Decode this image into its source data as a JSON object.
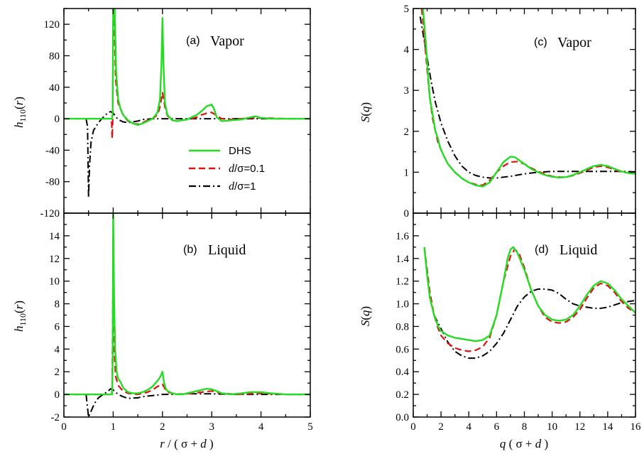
{
  "colors": {
    "DHS": "#22dd22",
    "d01": "#dd1111",
    "d1": "#000000",
    "frame": "#000000"
  },
  "legend": {
    "entries": [
      {
        "key": "DHS",
        "text": "DHS"
      },
      {
        "key": "d01",
        "text": "d/σ=0.1"
      },
      {
        "key": "d1",
        "text": "d/σ=1"
      }
    ]
  },
  "chart_data": [
    {
      "panel": "a",
      "type": "line",
      "label": "(a)",
      "title": "Vapor",
      "ylabel": "h110(r)",
      "xlabel": "",
      "xlim": [
        0,
        5
      ],
      "ylim": [
        -120,
        140
      ],
      "xticks": [
        0,
        1,
        2,
        3,
        4,
        5
      ],
      "yticks": [
        -120,
        -80,
        -40,
        0,
        40,
        80,
        120
      ],
      "show_xticklabels": false,
      "show_legend": true,
      "series": [
        {
          "key": "DHS",
          "name": "DHS",
          "x": [
            0,
            0.95,
            0.98,
            0.99,
            1.0,
            1.005,
            1.01,
            1.03,
            1.06,
            1.1,
            1.15,
            1.2,
            1.3,
            1.4,
            1.5,
            1.6,
            1.7,
            1.8,
            1.9,
            1.95,
            1.98,
            2.0,
            2.02,
            2.05,
            2.1,
            2.2,
            2.3,
            2.4,
            2.5,
            2.6,
            2.7,
            2.8,
            2.9,
            3.0,
            3.05,
            3.1,
            3.2,
            3.4,
            3.6,
            3.8,
            3.9,
            4.0,
            4.2,
            4.5,
            5.0
          ],
          "y": [
            0,
            0,
            0,
            10,
            140,
            140,
            140,
            140,
            60,
            25,
            12,
            5,
            -2,
            -6,
            -8,
            -6,
            -3,
            0,
            8,
            25,
            70,
            128,
            70,
            20,
            5,
            -2,
            -3,
            -2,
            -1,
            2,
            5,
            10,
            16,
            18,
            12,
            2,
            -3,
            -2,
            -1,
            2,
            3,
            1,
            0,
            0,
            0
          ]
        },
        {
          "key": "d01",
          "name": "d/σ=0.1",
          "x": [
            0,
            0.8,
            0.9,
            0.95,
            0.97,
            0.98,
            0.99,
            0.995,
            1.0,
            1.02,
            1.05,
            1.1,
            1.2,
            1.3,
            1.4,
            1.5,
            1.6,
            1.7,
            1.8,
            1.9,
            1.95,
            2.0,
            2.05,
            2.1,
            2.2,
            2.3,
            2.4,
            2.5,
            2.6,
            2.7,
            2.8,
            2.9,
            3.0,
            3.1,
            3.2,
            3.4,
            3.6,
            3.8,
            4.0,
            4.5,
            5.0
          ],
          "y": [
            0,
            0,
            0,
            0,
            -5,
            -25,
            -5,
            60,
            140,
            140,
            50,
            20,
            5,
            -3,
            -6,
            -7,
            -5,
            -2,
            0,
            5,
            15,
            33,
            15,
            4,
            -2,
            -3,
            -2,
            -1,
            0,
            2,
            5,
            7,
            8,
            4,
            0,
            -1,
            0,
            1,
            1,
            0,
            0
          ]
        },
        {
          "key": "d1",
          "name": "d/σ=1",
          "x": [
            0.45,
            0.48,
            0.5,
            0.52,
            0.55,
            0.6,
            0.7,
            0.8,
            0.9,
            0.95,
            1.0,
            1.05,
            1.1,
            1.2,
            1.3,
            1.4,
            1.5,
            1.6,
            1.8,
            2.0,
            2.5,
            3.0,
            3.5,
            4.0,
            4.5,
            5.0
          ],
          "y": [
            0,
            -10,
            -100,
            -60,
            -30,
            -15,
            -5,
            2,
            8,
            9,
            7,
            3,
            -1,
            -4,
            -5,
            -4,
            -3,
            -1,
            0,
            0,
            0,
            0,
            0,
            0,
            0,
            0
          ]
        }
      ]
    },
    {
      "panel": "b",
      "type": "line",
      "label": "(b)",
      "title": "Liquid",
      "ylabel": "h110(r)",
      "xlabel": "r / ( σ + d )",
      "xlim": [
        0,
        5
      ],
      "ylim": [
        -2,
        16
      ],
      "xticks": [
        0,
        1,
        2,
        3,
        4,
        5
      ],
      "yticks": [
        -2,
        0,
        2,
        4,
        6,
        8,
        10,
        12,
        14
      ],
      "show_xticklabels": true,
      "show_legend": false,
      "series": [
        {
          "key": "DHS",
          "name": "DHS",
          "x": [
            0,
            0.95,
            0.98,
            0.99,
            1.0,
            1.01,
            1.02,
            1.04,
            1.07,
            1.1,
            1.15,
            1.2,
            1.3,
            1.4,
            1.5,
            1.6,
            1.7,
            1.8,
            1.9,
            1.95,
            2.0,
            2.03,
            2.06,
            2.1,
            2.2,
            2.3,
            2.4,
            2.5,
            2.6,
            2.7,
            2.8,
            2.9,
            3.0,
            3.1,
            3.2,
            3.4,
            3.6,
            3.8,
            4.0,
            4.2,
            4.5,
            5.0
          ],
          "y": [
            0,
            0,
            0,
            3,
            16,
            12,
            8,
            4,
            2,
            1.4,
            1.1,
            0.6,
            0.2,
            0.1,
            0.1,
            0.2,
            0.4,
            0.7,
            1.2,
            1.5,
            2.0,
            1.1,
            0.6,
            0.3,
            0.1,
            0,
            0,
            0.1,
            0.2,
            0.3,
            0.4,
            0.5,
            0.45,
            0.3,
            0.1,
            0,
            0.1,
            0.2,
            0.2,
            0.1,
            0,
            0
          ]
        },
        {
          "key": "d01",
          "name": "d/σ=0.1",
          "x": [
            0,
            0.9,
            0.95,
            0.97,
            0.98,
            0.99,
            1.0,
            1.01,
            1.02,
            1.05,
            1.1,
            1.2,
            1.3,
            1.5,
            1.7,
            1.8,
            1.9,
            2.0,
            2.05,
            2.1,
            2.3,
            2.5,
            2.8,
            3.0,
            3.2,
            3.5,
            4.0,
            4.5,
            5.0
          ],
          "y": [
            0,
            0,
            0,
            -0.1,
            0.5,
            6,
            14,
            9,
            4,
            1.6,
            0.8,
            0.3,
            0.1,
            0,
            0.2,
            0.4,
            0.7,
            0.9,
            0.5,
            0.2,
            0,
            0.05,
            0.2,
            0.3,
            0.1,
            0,
            0.1,
            0,
            0
          ]
        },
        {
          "key": "d1",
          "name": "d/σ=1",
          "x": [
            0.45,
            0.5,
            0.52,
            0.55,
            0.6,
            0.65,
            0.7,
            0.8,
            0.9,
            0.95,
            1.0,
            1.1,
            1.2,
            1.3,
            1.5,
            1.6,
            1.8,
            2.0,
            2.2,
            2.5,
            3.0,
            3.5,
            4.0,
            4.5,
            5.0
          ],
          "y": [
            0,
            -2,
            -1.8,
            -1.5,
            -1,
            -0.6,
            -0.3,
            0,
            0.3,
            0.5,
            0.4,
            0,
            -0.2,
            -0.35,
            -0.3,
            -0.2,
            -0.1,
            0,
            0,
            0.05,
            0.05,
            0,
            0,
            0,
            0
          ]
        }
      ]
    },
    {
      "panel": "c",
      "type": "line",
      "label": "(c)",
      "title": "Vapor",
      "ylabel": "S(q)",
      "xlabel": "",
      "xlim": [
        0,
        16
      ],
      "ylim": [
        0,
        5
      ],
      "xticks": [
        0,
        2,
        4,
        6,
        8,
        10,
        12,
        14,
        16
      ],
      "yticks": [
        0,
        1,
        2,
        3,
        4,
        5
      ],
      "show_xticklabels": false,
      "show_legend": false,
      "series": [
        {
          "key": "DHS",
          "name": "DHS",
          "x": [
            0.7,
            0.8,
            0.9,
            1.0,
            1.1,
            1.2,
            1.3,
            1.4,
            1.5,
            1.6,
            1.7,
            1.8,
            1.9,
            2.0,
            2.2,
            2.5,
            3.0,
            3.5,
            4.0,
            4.5,
            5.0,
            5.5,
            6.0,
            6.5,
            7.0,
            7.3,
            7.6,
            8.0,
            8.5,
            9.0,
            9.5,
            10,
            10.5,
            11,
            11.5,
            12,
            12.5,
            13,
            13.5,
            14,
            14.5,
            15,
            15.5,
            16
          ],
          "y": [
            5,
            4.6,
            4.2,
            3.7,
            3.2,
            2.8,
            2.6,
            2.4,
            2.2,
            2.0,
            1.9,
            1.8,
            1.65,
            1.55,
            1.4,
            1.2,
            1.0,
            0.85,
            0.75,
            0.68,
            0.65,
            0.75,
            1.0,
            1.25,
            1.38,
            1.37,
            1.3,
            1.2,
            1.08,
            1.0,
            0.93,
            0.89,
            0.87,
            0.88,
            0.93,
            1.0,
            1.08,
            1.15,
            1.18,
            1.15,
            1.08,
            1.02,
            0.98,
            0.96
          ]
        },
        {
          "key": "d01",
          "name": "d/σ=0.1",
          "x": [
            0.6,
            0.7,
            0.8,
            0.9,
            1.0,
            1.2,
            1.4,
            1.6,
            1.8,
            2.0,
            2.2,
            2.5,
            3.0,
            3.5,
            4.0,
            4.5,
            5.0,
            5.5,
            6.0,
            6.5,
            7.0,
            7.5,
            8.0,
            8.5,
            9.0,
            9.5,
            10,
            10.5,
            11,
            11.5,
            12,
            12.5,
            13,
            13.5,
            14,
            14.5,
            15,
            15.5,
            16
          ],
          "y": [
            5,
            4.7,
            4.3,
            3.9,
            3.5,
            2.8,
            2.3,
            2.0,
            1.7,
            1.55,
            1.4,
            1.2,
            1.0,
            0.85,
            0.75,
            0.7,
            0.68,
            0.8,
            1.0,
            1.15,
            1.25,
            1.26,
            1.2,
            1.1,
            1.02,
            0.95,
            0.9,
            0.88,
            0.88,
            0.92,
            0.98,
            1.05,
            1.12,
            1.15,
            1.12,
            1.06,
            1.01,
            0.98,
            0.96
          ]
        },
        {
          "key": "d1",
          "name": "d/σ=1",
          "x": [
            0.5,
            0.7,
            1.0,
            1.3,
            1.6,
            2.0,
            2.5,
            3.0,
            3.5,
            4.0,
            4.5,
            5.0,
            5.5,
            6.0,
            7.0,
            8.0,
            9.0,
            10,
            11,
            12,
            13,
            14,
            15,
            16
          ],
          "y": [
            4.8,
            4.4,
            3.8,
            3.2,
            2.7,
            2.2,
            1.75,
            1.4,
            1.15,
            1.0,
            0.92,
            0.88,
            0.86,
            0.86,
            0.9,
            0.96,
            1.0,
            1.02,
            1.02,
            1.02,
            1.02,
            1.02,
            1.02,
            1.01
          ]
        }
      ]
    },
    {
      "panel": "d",
      "type": "line",
      "label": "(d)",
      "title": "Liquid",
      "ylabel": "S(q)",
      "xlabel": "q ( σ + d )",
      "xlim": [
        0,
        16
      ],
      "ylim": [
        0.0,
        1.8
      ],
      "xticks": [
        0,
        2,
        4,
        6,
        8,
        10,
        12,
        14,
        16
      ],
      "yticks": [
        0.0,
        0.2,
        0.4,
        0.6,
        0.8,
        1.0,
        1.2,
        1.4,
        1.6
      ],
      "show_xticklabels": true,
      "show_legend": false,
      "series": [
        {
          "key": "DHS",
          "name": "DHS",
          "x": [
            0.8,
            1.0,
            1.2,
            1.5,
            1.8,
            2.0,
            2.5,
            3.0,
            3.5,
            4.0,
            4.5,
            5.0,
            5.5,
            6.0,
            6.5,
            6.8,
            7.0,
            7.2,
            7.5,
            8.0,
            8.5,
            9.0,
            9.5,
            10,
            10.5,
            11,
            11.5,
            12,
            12.5,
            13,
            13.5,
            14,
            14.5,
            15,
            15.5,
            16
          ],
          "y": [
            1.5,
            1.25,
            1.05,
            0.9,
            0.8,
            0.76,
            0.72,
            0.7,
            0.69,
            0.68,
            0.67,
            0.68,
            0.72,
            0.9,
            1.2,
            1.4,
            1.48,
            1.5,
            1.45,
            1.3,
            1.12,
            0.98,
            0.9,
            0.86,
            0.85,
            0.86,
            0.9,
            0.98,
            1.08,
            1.16,
            1.2,
            1.18,
            1.12,
            1.04,
            0.98,
            0.92
          ]
        },
        {
          "key": "d01",
          "name": "d/σ=0.1",
          "x": [
            0.8,
            1.0,
            1.2,
            1.5,
            1.8,
            2.0,
            2.5,
            3.0,
            3.5,
            4.0,
            4.5,
            5.0,
            5.5,
            6.0,
            6.5,
            7.0,
            7.3,
            7.6,
            8.0,
            8.5,
            9.0,
            9.5,
            10,
            10.5,
            11,
            11.5,
            12,
            12.5,
            13,
            13.5,
            14,
            14.5,
            15,
            15.5,
            16
          ],
          "y": [
            1.5,
            1.3,
            1.1,
            0.9,
            0.78,
            0.72,
            0.65,
            0.61,
            0.59,
            0.58,
            0.59,
            0.62,
            0.7,
            0.9,
            1.2,
            1.42,
            1.48,
            1.45,
            1.32,
            1.12,
            0.98,
            0.88,
            0.84,
            0.83,
            0.84,
            0.88,
            0.95,
            1.05,
            1.14,
            1.18,
            1.16,
            1.1,
            1.02,
            0.96,
            0.92
          ]
        },
        {
          "key": "d1",
          "name": "d/σ=1",
          "x": [
            1.5,
            2.0,
            2.5,
            3.0,
            3.5,
            4.0,
            4.5,
            5.0,
            5.5,
            6.0,
            6.5,
            7.0,
            7.5,
            8.0,
            8.5,
            9.0,
            9.5,
            10,
            10.5,
            11,
            11.5,
            12,
            12.5,
            13,
            13.5,
            14,
            14.5,
            15,
            15.5,
            16
          ],
          "y": [
            0.9,
            0.78,
            0.66,
            0.58,
            0.54,
            0.52,
            0.52,
            0.54,
            0.58,
            0.65,
            0.74,
            0.86,
            0.98,
            1.06,
            1.11,
            1.13,
            1.13,
            1.12,
            1.09,
            1.04,
            1.0,
            0.98,
            0.97,
            0.96,
            0.96,
            0.97,
            0.99,
            1.01,
            1.02,
            1.03
          ]
        }
      ]
    }
  ]
}
